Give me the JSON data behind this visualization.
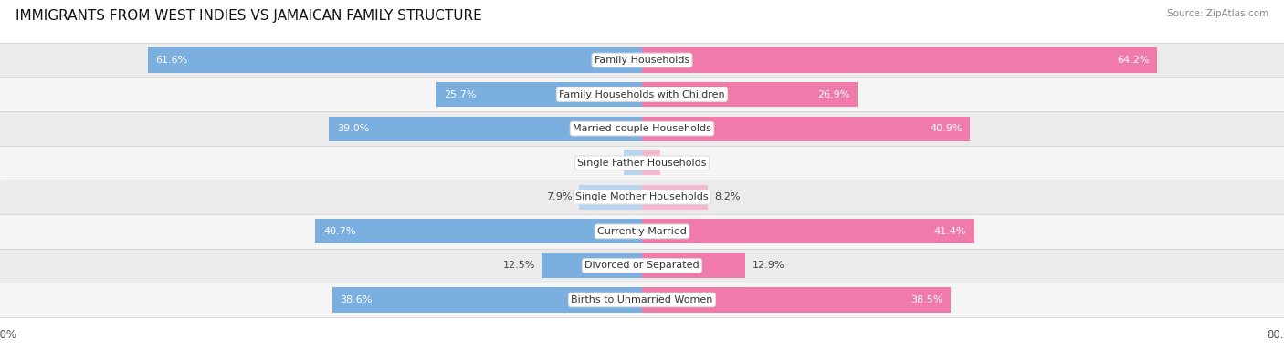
{
  "title": "IMMIGRANTS FROM WEST INDIES VS JAMAICAN FAMILY STRUCTURE",
  "source": "Source: ZipAtlas.com",
  "categories": [
    "Family Households",
    "Family Households with Children",
    "Married-couple Households",
    "Single Father Households",
    "Single Mother Households",
    "Currently Married",
    "Divorced or Separated",
    "Births to Unmarried Women"
  ],
  "west_indies_values": [
    61.6,
    25.7,
    39.0,
    2.3,
    7.9,
    40.7,
    12.5,
    38.6
  ],
  "jamaican_values": [
    64.2,
    26.9,
    40.9,
    2.3,
    8.2,
    41.4,
    12.9,
    38.5
  ],
  "west_indies_color": "#7aafe0",
  "jamaican_color": "#f07aaa",
  "west_indies_light_color": "#b8d4ee",
  "jamaican_light_color": "#f5b8d0",
  "max_value": 80.0,
  "row_colors": [
    "#ebebeb",
    "#f5f5f5"
  ],
  "label_fontsize": 8.0,
  "title_fontsize": 11,
  "axis_label_fontsize": 8.5
}
